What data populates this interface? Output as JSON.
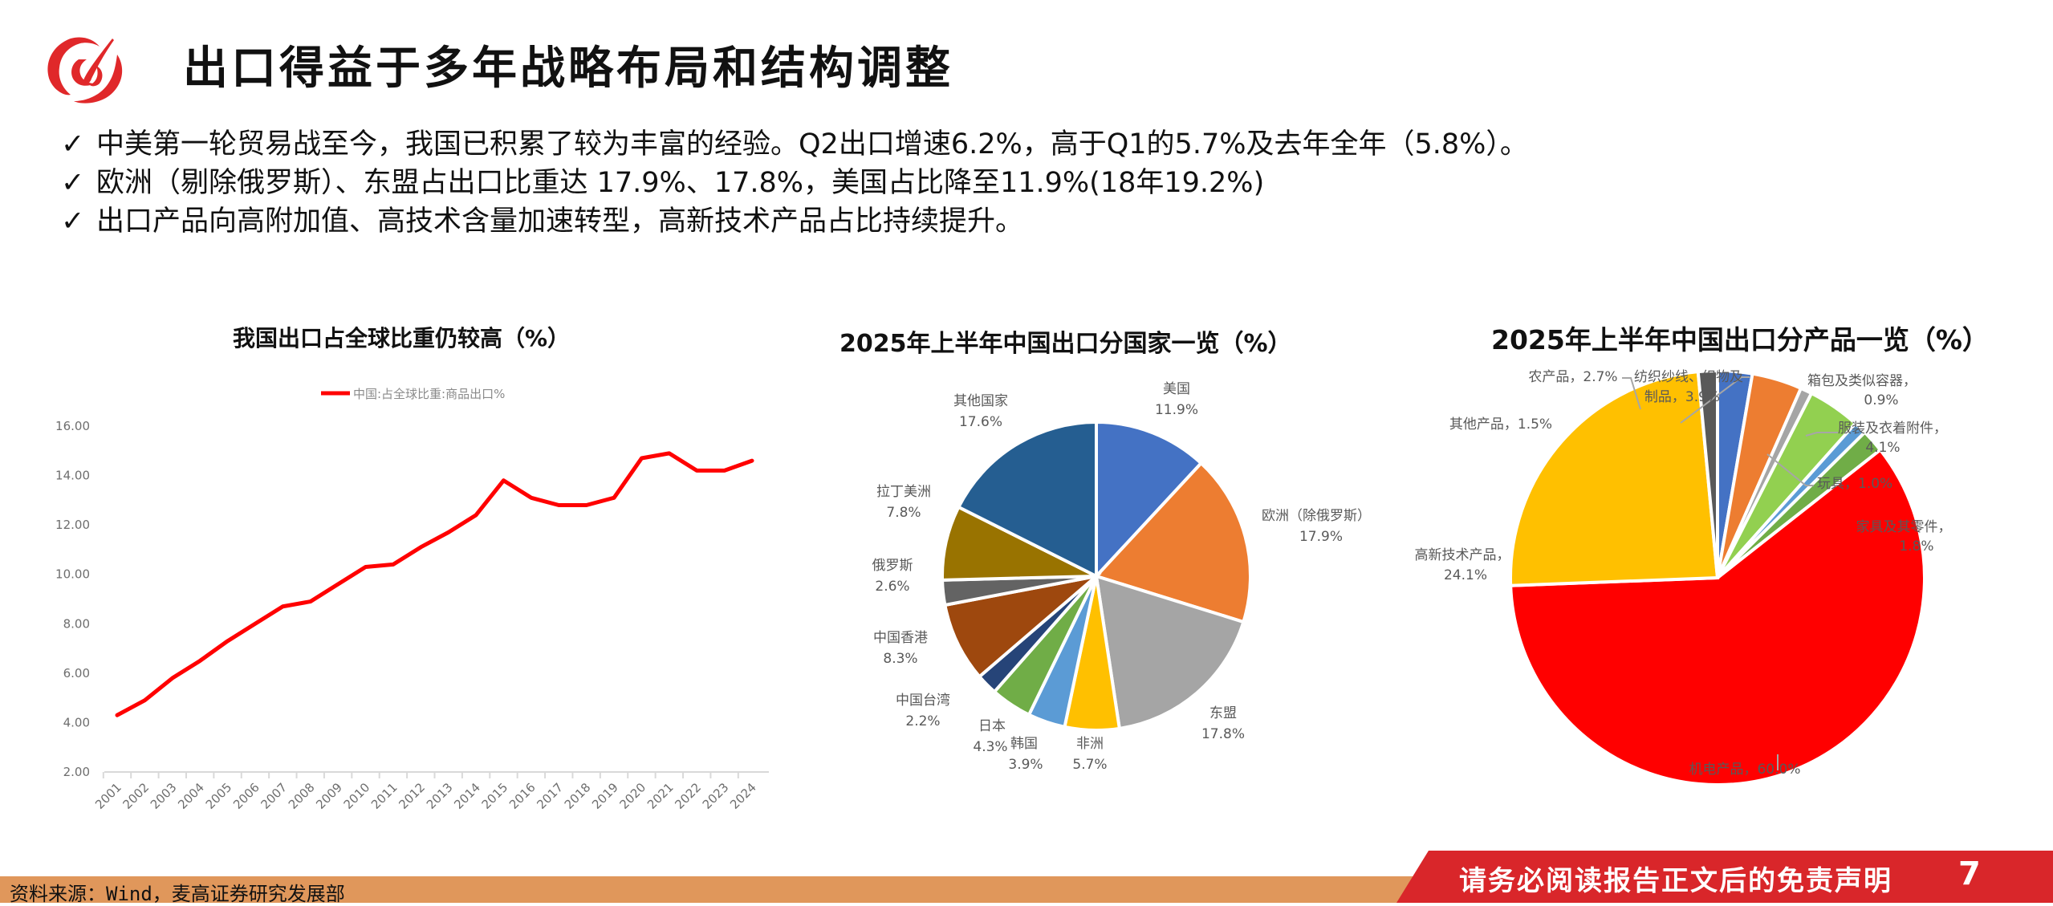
{
  "header": {
    "title": "出口得益于多年战略布局和结构调整",
    "logo_color": "#e0282a"
  },
  "bullets": [
    {
      "icon": "check-icon",
      "text": "中美第一轮贸易战至今，我国已积累了较为丰富的经验。Q2出口增速6.2%，高于Q1的5.7%及去年全年（5.8%）。"
    },
    {
      "icon": "check-icon",
      "text": "欧洲（剔除俄罗斯）、东盟占出口比重达 17.9%、17.8%，美国占比降至11.9%(18年19.2%)"
    },
    {
      "icon": "check-icon",
      "text": "出口产品向高附加值、高技术含量加速转型，高新技术产品占比持续提升。"
    }
  ],
  "chart_data": [
    {
      "type": "line",
      "title": "我国出口占全球比重仍较高（%）",
      "xlabel": "",
      "ylabel": "",
      "legend": [
        "中国:占全球比重:商品出口%"
      ],
      "legend_position": "top",
      "grid": false,
      "ylim": [
        2.0,
        16.0
      ],
      "yticks": [
        "2.00",
        "4.00",
        "6.00",
        "8.00",
        "10.00",
        "12.00",
        "14.00",
        "16.00"
      ],
      "categories": [
        "2001",
        "2002",
        "2003",
        "2004",
        "2005",
        "2006",
        "2007",
        "2008",
        "2009",
        "2010",
        "2011",
        "2012",
        "2013",
        "2014",
        "2015",
        "2016",
        "2017",
        "2018",
        "2019",
        "2020",
        "2021",
        "2022",
        "2023",
        "2024"
      ],
      "series": [
        {
          "name": "中国:占全球比重:商品出口%",
          "color": "#ff0000",
          "values": [
            4.3,
            4.9,
            5.8,
            6.5,
            7.3,
            8.0,
            8.7,
            8.9,
            9.6,
            10.3,
            10.4,
            11.1,
            11.7,
            12.4,
            13.8,
            13.1,
            12.8,
            12.8,
            13.1,
            14.7,
            14.9,
            14.2,
            14.2,
            14.6
          ]
        }
      ]
    },
    {
      "type": "pie",
      "title": "2025年上半年中国出口分国家一览（%）",
      "slices": [
        {
          "label": "美国",
          "value": 11.9,
          "display": "11.9%",
          "color": "#4472c4"
        },
        {
          "label": "欧洲（除俄罗斯）",
          "value": 17.9,
          "display": "17.9%",
          "color": "#ed7d31"
        },
        {
          "label": "东盟",
          "value": 17.8,
          "display": "17.8%",
          "color": "#a5a5a5"
        },
        {
          "label": "非洲",
          "value": 5.7,
          "display": "5.7%",
          "color": "#ffc000"
        },
        {
          "label": "韩国",
          "value": 3.9,
          "display": "3.9%",
          "color": "#5b9bd5"
        },
        {
          "label": "日本",
          "value": 4.3,
          "display": "4.3%",
          "color": "#70ad47"
        },
        {
          "label": "中国台湾",
          "value": 2.2,
          "display": "2.2%",
          "color": "#264478"
        },
        {
          "label": "中国香港",
          "value": 8.3,
          "display": "8.3%",
          "color": "#9e480e"
        },
        {
          "label": "俄罗斯",
          "value": 2.6,
          "display": "2.6%",
          "color": "#636363"
        },
        {
          "label": "拉丁美洲",
          "value": 7.8,
          "display": "7.8%",
          "color": "#997300"
        },
        {
          "label": "其他国家",
          "value": 17.6,
          "display": "17.6%",
          "color": "#255e91"
        }
      ]
    },
    {
      "type": "pie",
      "title": "2025年上半年中国出口分产品一览（%）",
      "slices": [
        {
          "label": "农产品",
          "value": 2.7,
          "display": "农产品，2.7%",
          "color": "#4472c4"
        },
        {
          "label": "纺织纱线、织物及制品",
          "value": 3.9,
          "display": "纺织纱线、织物及制品，3.9%",
          "color": "#ed7d31"
        },
        {
          "label": "箱包及类似容器",
          "value": 0.9,
          "display": "箱包及类似容器，0.9%",
          "color": "#a5a5a5"
        },
        {
          "label": "服装及衣着附件",
          "value": 4.1,
          "display": "服装及衣着附件，4.1%",
          "color": "#92d050"
        },
        {
          "label": "玩具",
          "value": 1.0,
          "display": "玩具，1.0%",
          "color": "#5b9bd5"
        },
        {
          "label": "家具及其零件",
          "value": 1.8,
          "display": "家具及其零件，1.8%",
          "color": "#70ad47"
        },
        {
          "label": "机电产品",
          "value": 60.0,
          "display": "机电产品，60.0%",
          "color": "#ff0000"
        },
        {
          "label": "高新技术产品",
          "value": 24.1,
          "display": "高新技术产品，24.1%",
          "color": "#ffc000"
        },
        {
          "label": "其他产品",
          "value": 1.5,
          "display": "其他产品，1.5%",
          "color": "#595959"
        }
      ]
    }
  ],
  "labels": {
    "line_title": "我国出口占全球比重仍较高（%）",
    "line_legend": "中国:占全球比重:商品出口%",
    "pie1_title": "2025年上半年中国出口分国家一览（%）",
    "pie2_title": "2025年上半年中国出口分产品一览（%）",
    "p1": {
      "us_name": "美国",
      "us_val": "11.9%",
      "eu_name": "欧洲（除俄罗斯）",
      "eu_val": "17.9%",
      "asean_name": "东盟",
      "asean_val": "17.8%",
      "africa_name": "非洲",
      "africa_val": "5.7%",
      "korea_name": "韩国",
      "korea_val": "3.9%",
      "japan_name": "日本",
      "japan_val": "4.3%",
      "tw_name": "中国台湾",
      "tw_val": "2.2%",
      "hk_name": "中国香港",
      "hk_val": "8.3%",
      "ru_name": "俄罗斯",
      "ru_val": "2.6%",
      "latam_name": "拉丁美洲",
      "latam_val": "7.8%",
      "other_name": "其他国家",
      "other_val": "17.6%"
    },
    "p2": {
      "agri": "农产品，2.7%",
      "textile_1": "纺织纱线、织物及",
      "textile_2": "制品，3.9%",
      "bags_1": "箱包及类似容器，",
      "bags_2": "0.9%",
      "apparel_1": "服装及衣着附件，",
      "apparel_2": "4.1%",
      "toys": "玩具，1.0%",
      "furniture_1": "家具及其零件，",
      "furniture_2": "1.8%",
      "mech": "机电产品，60.0%",
      "hitech_1": "高新技术产品，",
      "hitech_2": "24.1%",
      "other": "其他产品，1.5%"
    }
  },
  "footer": {
    "source": "资料来源：Wind，麦高证券研究发展部",
    "disclaimer": "请务必阅读报告正文后的免责声明",
    "page_number": "7",
    "bar_color": "#e0975b",
    "accent_color": "#d9262a"
  }
}
